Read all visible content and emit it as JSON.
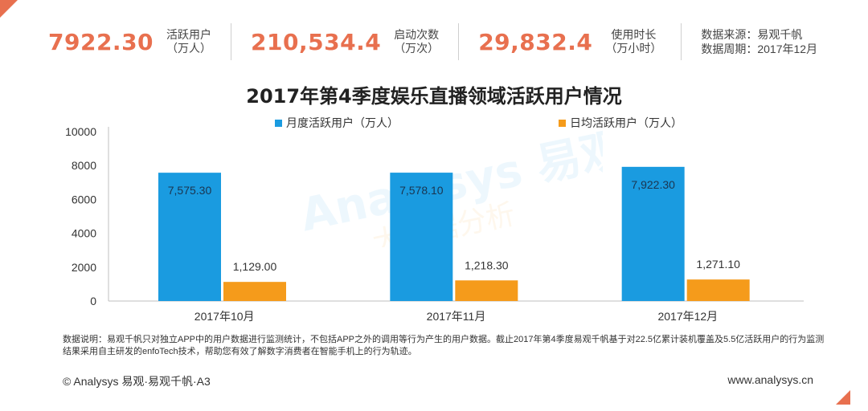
{
  "stats": [
    {
      "value": "7922.30",
      "label_line1": "活跃用户",
      "label_line2": "（万人）"
    },
    {
      "value": "210,534.4",
      "label_line1": "启动次数",
      "label_line2": "（万次）"
    },
    {
      "value": "29,832.4",
      "label_line1": "使用时长",
      "label_line2": "（万小时）"
    }
  ],
  "source": {
    "line1": "数据来源：易观千帆",
    "line2": "数据周期：2017年12月"
  },
  "note": "数据说明：易观千帆只对独立APP中的用户数据进行监测统计，不包括APP之外的调用等行为产生的用户数据。截止2017年第4季度易观千帆基于对22.5亿累计装机覆盖及5.5亿活跃用户的行为监测结果采用自主研发的enfoTech技术，帮助您有效了解数字消费者在智能手机上的行为轨迹。",
  "footer": {
    "left": "© Analysys 易观·易观千帆·A3",
    "right": "www.analysys.cn"
  },
  "watermark": {
    "brand": "Analysys 易观",
    "tagline": "大数据分析"
  },
  "colors": {
    "accent": "#e8704f",
    "series1": "#1a9be0",
    "series2": "#f59b1b"
  },
  "chart_data": {
    "type": "bar",
    "title": "2017年第4季度娱乐直播领域活跃用户情况",
    "categories": [
      "2017年10月",
      "2017年11月",
      "2017年12月"
    ],
    "series": [
      {
        "name": "月度活跃用户（万人）",
        "values": [
          7575.3,
          7578.1,
          7922.3
        ],
        "labels": [
          "7,575.30",
          "7,578.10",
          "7,922.30"
        ]
      },
      {
        "name": "日均活跃用户（万人）",
        "values": [
          1129.0,
          1218.3,
          1271.1
        ],
        "labels": [
          "1,129.00",
          "1,218.30",
          "1,271.10"
        ]
      }
    ],
    "ylim": [
      0,
      10000
    ],
    "yticks": [
      "0",
      "2000",
      "4000",
      "6000",
      "8000",
      "10000"
    ],
    "legend": "top",
    "grid": false
  }
}
